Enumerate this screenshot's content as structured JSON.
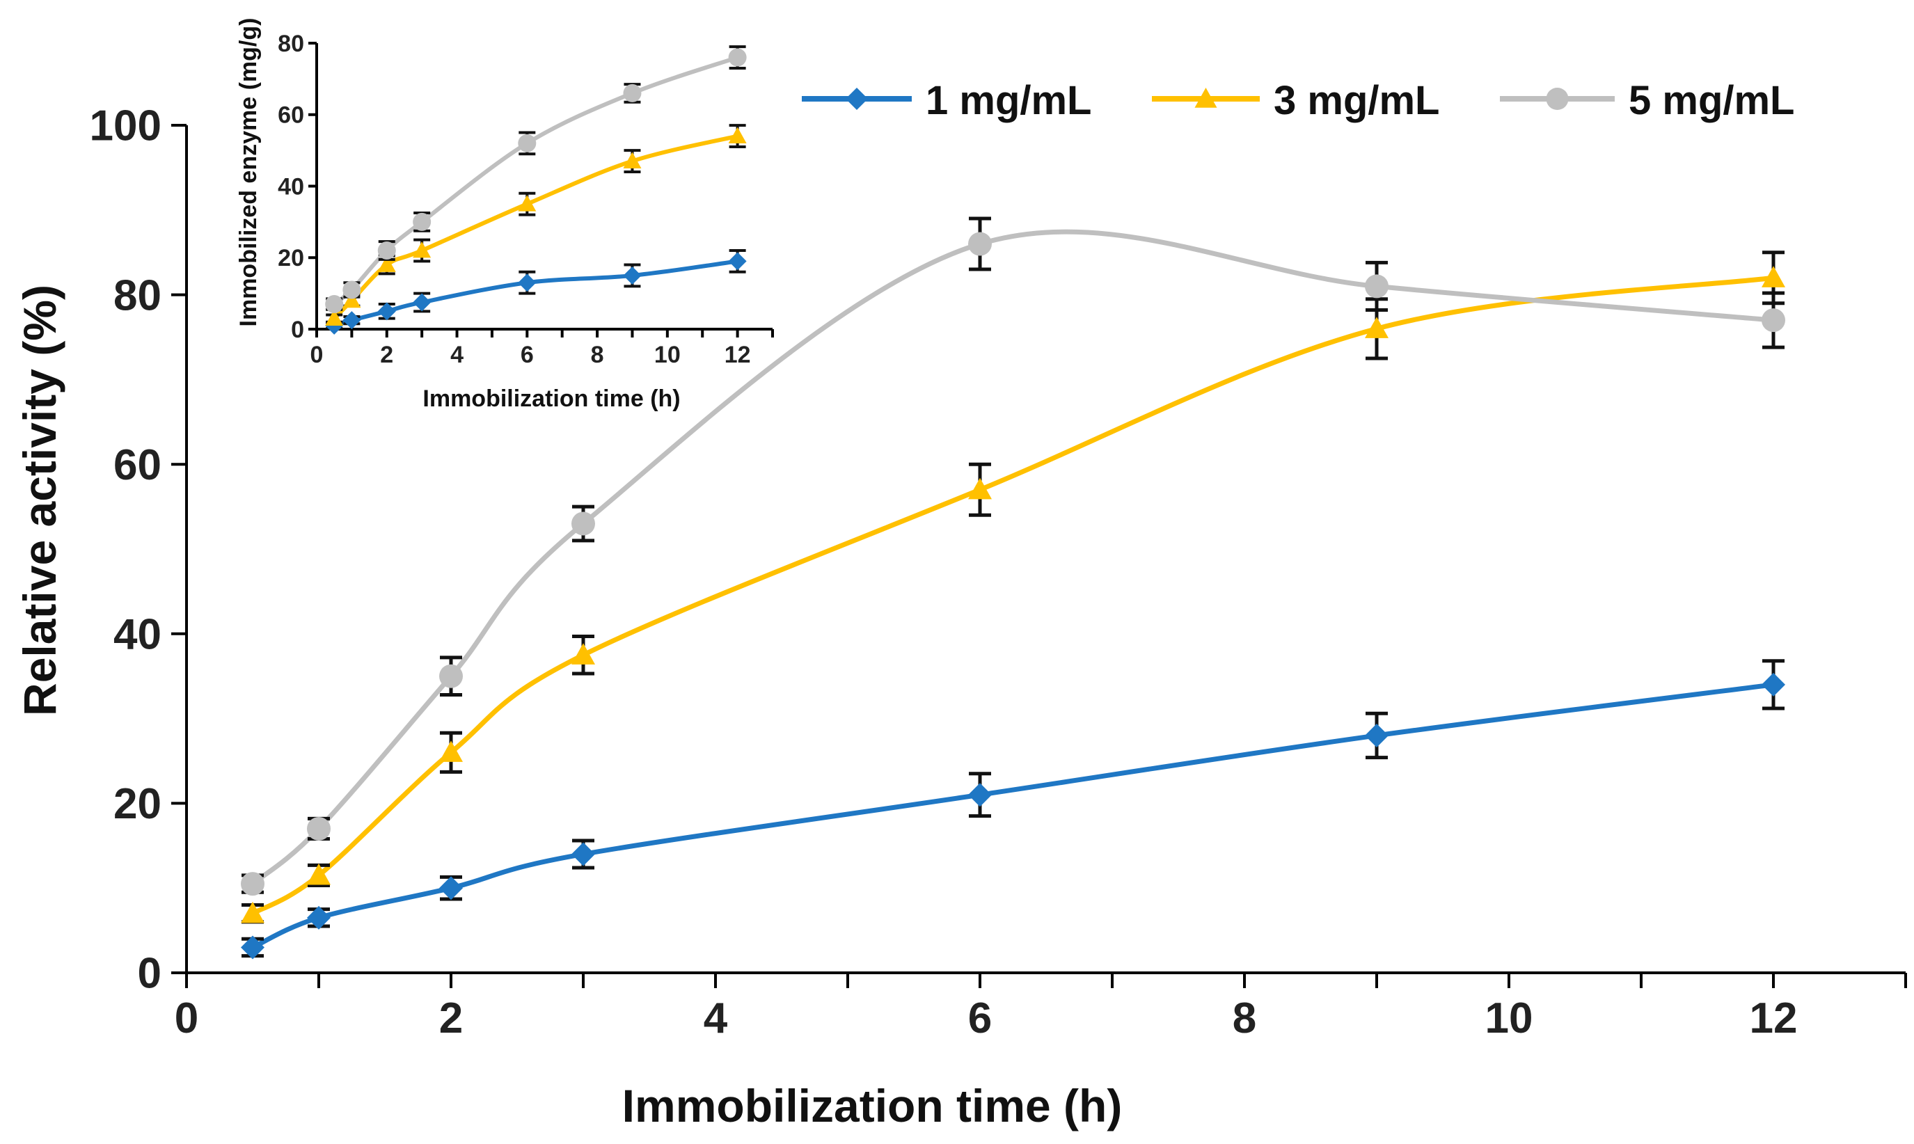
{
  "chart_data": [
    {
      "type": "line",
      "name": "main",
      "xlabel": "Immobilization time (h)",
      "ylabel": "Relative activity (%)",
      "xlim": [
        0,
        13
      ],
      "ylim": [
        0,
        100
      ],
      "x_ticks": [
        "0",
        "2",
        "4",
        "6",
        "8",
        "10",
        "12"
      ],
      "y_ticks": [
        "0",
        "20",
        "40",
        "60",
        "80",
        "100"
      ],
      "x": [
        0.5,
        1,
        2,
        3,
        6,
        9,
        12
      ],
      "series": [
        {
          "name": "1 mg/mL",
          "color": "#1f77c4",
          "marker": "diamond",
          "values": [
            3,
            6.5,
            10,
            14,
            21,
            28,
            34
          ],
          "errors": [
            1,
            1,
            1.3,
            1.6,
            2.5,
            2.6,
            2.8
          ]
        },
        {
          "name": "3 mg/mL",
          "color": "#ffc000",
          "marker": "triangle",
          "values": [
            7,
            11.5,
            26,
            37.5,
            57,
            76,
            82
          ],
          "errors": [
            1,
            1.2,
            2.3,
            2.2,
            3,
            3.5,
            3
          ]
        },
        {
          "name": "5 mg/mL",
          "color": "#bfbfbf",
          "marker": "circle",
          "values": [
            10.5,
            17,
            35,
            53,
            86,
            81,
            77
          ],
          "errors": [
            1,
            1.2,
            2.2,
            2,
            3,
            2.8,
            3.2
          ]
        }
      ],
      "legend": "top-right"
    },
    {
      "type": "line",
      "name": "inset",
      "xlabel": "Immobilization time (h)",
      "ylabel": "Immobilized enzyme (mg/g)",
      "xlim": [
        0,
        13
      ],
      "ylim": [
        0,
        80
      ],
      "x_ticks": [
        "0",
        "2",
        "4",
        "6",
        "8",
        "10",
        "12"
      ],
      "y_ticks": [
        "0",
        "20",
        "40",
        "60",
        "80"
      ],
      "x": [
        0.5,
        1,
        2,
        3,
        6,
        9,
        12
      ],
      "series": [
        {
          "name": "1 mg/mL",
          "color": "#1f77c4",
          "marker": "diamond",
          "values": [
            1,
            2.5,
            5,
            7.5,
            13,
            15,
            19
          ],
          "errors": [
            0.8,
            1,
            2,
            2.5,
            3,
            3,
            3
          ]
        },
        {
          "name": "3 mg/mL",
          "color": "#ffc000",
          "marker": "triangle",
          "values": [
            3,
            8,
            18,
            22,
            35,
            47,
            54
          ],
          "errors": [
            1,
            1.5,
            2.5,
            3,
            3,
            3,
            3
          ]
        },
        {
          "name": "5 mg/mL",
          "color": "#bfbfbf",
          "marker": "circle",
          "values": [
            7,
            11,
            22,
            30,
            52,
            66,
            76
          ],
          "errors": [
            1.5,
            2,
            2.5,
            2.5,
            3,
            2.5,
            3
          ]
        }
      ]
    }
  ]
}
